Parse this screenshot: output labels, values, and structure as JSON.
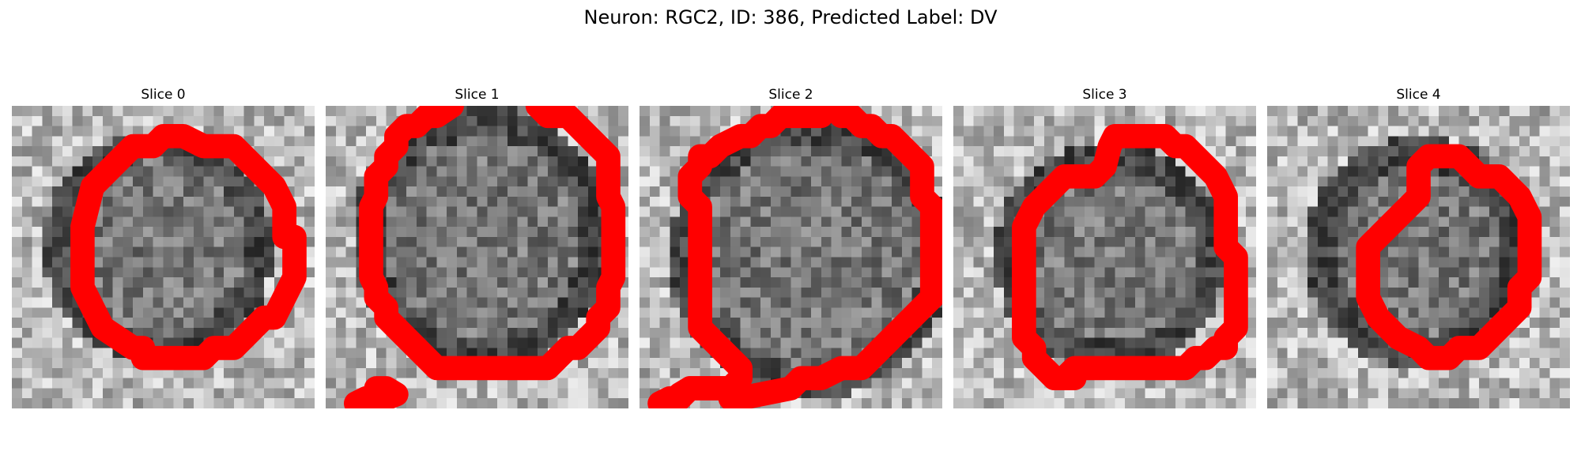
{
  "figure": {
    "title": "Neuron: RGC2, ID: 386, Predicted Label: DV",
    "contour_color": "#ff0000",
    "colormap": "gray"
  },
  "slices": [
    {
      "title": "Slice 0"
    },
    {
      "title": "Slice 1"
    },
    {
      "title": "Slice 2"
    },
    {
      "title": "Slice 3"
    },
    {
      "title": "Slice 4"
    }
  ]
}
